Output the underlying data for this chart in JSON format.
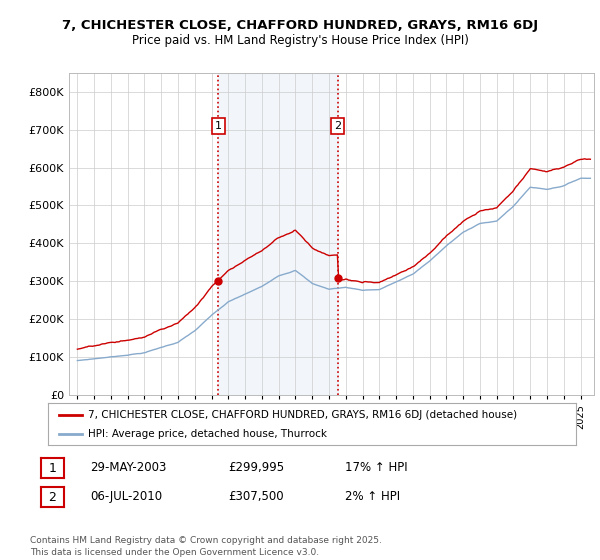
{
  "title": "7, CHICHESTER CLOSE, CHAFFORD HUNDRED, GRAYS, RM16 6DJ",
  "subtitle": "Price paid vs. HM Land Registry's House Price Index (HPI)",
  "line_color_red": "#cc0000",
  "line_color_blue": "#88aacc",
  "background_color": "#ffffff",
  "chart_bg_color": "#ffffff",
  "shade_color": "#dce8f5",
  "grid_color": "#cccccc",
  "vline_color": "#cc0000",
  "legend_label_red": "7, CHICHESTER CLOSE, CHAFFORD HUNDRED, GRAYS, RM16 6DJ (detached house)",
  "legend_label_blue": "HPI: Average price, detached house, Thurrock",
  "table_row1": [
    "1",
    "29-MAY-2003",
    "£299,995",
    "17% ↑ HPI"
  ],
  "table_row2": [
    "2",
    "06-JUL-2010",
    "£307,500",
    "2% ↑ HPI"
  ],
  "footnote": "Contains HM Land Registry data © Crown copyright and database right 2025.\nThis data is licensed under the Open Government Licence v3.0.",
  "sale1_year": 2003.41,
  "sale1_price": 299995,
  "sale2_year": 2010.51,
  "sale2_price": 307500,
  "xlim_start": 1994.5,
  "xlim_end": 2025.8,
  "ylim": [
    0,
    850000
  ],
  "yticks": [
    0,
    100000,
    200000,
    300000,
    400000,
    500000,
    600000,
    700000,
    800000
  ]
}
